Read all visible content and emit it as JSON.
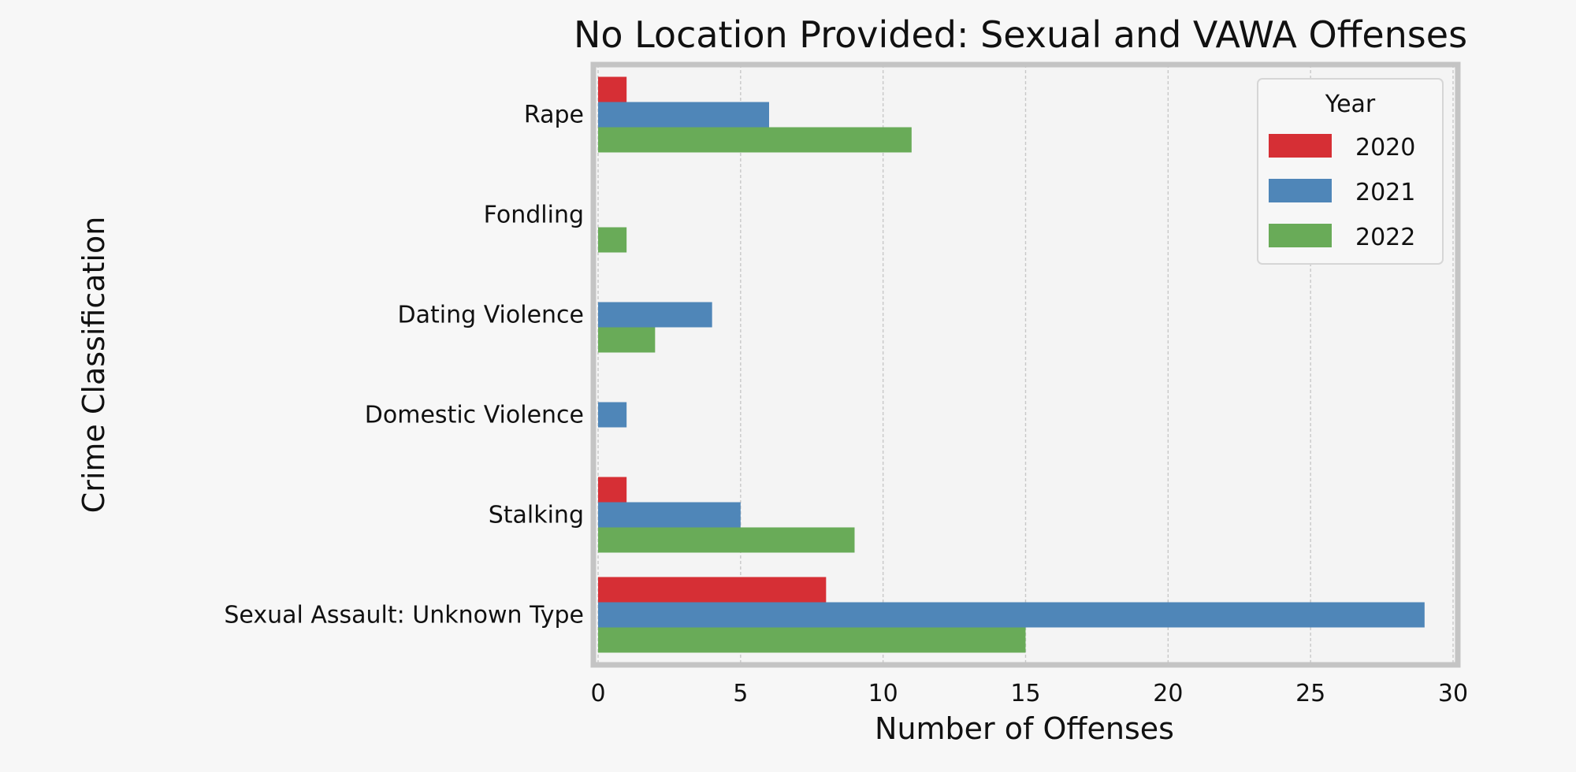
{
  "chart_data": {
    "type": "bar",
    "orientation": "horizontal",
    "title": "No Location Provided: Sexual and VAWA Offenses",
    "xlabel": "Number of Offenses",
    "ylabel": "Crime Classification",
    "categories": [
      "Rape",
      "Fondling",
      "Dating Violence",
      "Domestic Violence",
      "Stalking",
      "Sexual Assault: Unknown Type"
    ],
    "series": [
      {
        "name": "2020",
        "color": "#d62f35",
        "values": [
          1,
          0,
          0,
          0,
          1,
          8
        ]
      },
      {
        "name": "2021",
        "color": "#4f86b8",
        "values": [
          6,
          0,
          4,
          1,
          5,
          29
        ]
      },
      {
        "name": "2022",
        "color": "#69ab58",
        "values": [
          11,
          1,
          2,
          0,
          9,
          15
        ]
      }
    ],
    "xlim": [
      0,
      30
    ],
    "xticks": [
      0,
      5,
      10,
      15,
      20,
      25,
      30
    ],
    "grid": true,
    "legend": {
      "title": "Year",
      "position": "top-right"
    }
  }
}
